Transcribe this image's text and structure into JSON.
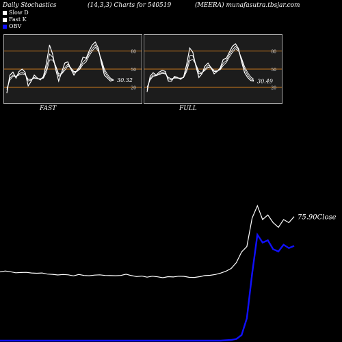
{
  "header": {
    "title": "Daily Stochastics",
    "params": "(14,3,3) Charts for 540519",
    "site": "(MEERA) munafasutra.tbsjar.com"
  },
  "legend": [
    {
      "label": "Slow  D",
      "color": "#ffffff"
    },
    {
      "label": "Fast K",
      "color": "#ffffff"
    },
    {
      "label": "OBV",
      "color": "#1010ff"
    }
  ],
  "colors": {
    "line": "#ffffff",
    "obv": "#1010ff",
    "band": "#c8781e",
    "panel_bg": "#1c1c1c"
  },
  "chart_data": [
    {
      "type": "line",
      "title": "FAST",
      "ylim": [
        0,
        100
      ],
      "levels": [
        20,
        50,
        80
      ],
      "value_label": "30.32",
      "series": [
        {
          "values": [
            10,
            40,
            45,
            35,
            46,
            50,
            45,
            22,
            30,
            40,
            35,
            32,
            38,
            60,
            90,
            75,
            50,
            30,
            45,
            60,
            62,
            50,
            40,
            48,
            55,
            70,
            68,
            80,
            90,
            95,
            85,
            60,
            40,
            35,
            30,
            32
          ]
        },
        {
          "values": [
            15,
            35,
            40,
            38,
            42,
            45,
            42,
            30,
            32,
            36,
            34,
            33,
            36,
            50,
            75,
            70,
            55,
            38,
            42,
            52,
            58,
            52,
            44,
            46,
            52,
            62,
            66,
            76,
            84,
            90,
            82,
            64,
            46,
            38,
            33,
            31
          ]
        },
        {
          "values": [
            18,
            32,
            38,
            38,
            40,
            42,
            41,
            33,
            33,
            35,
            34,
            34,
            35,
            45,
            65,
            65,
            56,
            42,
            42,
            48,
            55,
            52,
            46,
            46,
            50,
            58,
            62,
            72,
            80,
            86,
            80,
            66,
            50,
            41,
            35,
            32
          ]
        }
      ]
    },
    {
      "type": "line",
      "title": "FULL",
      "ylim": [
        0,
        100
      ],
      "levels": [
        20,
        50,
        80
      ],
      "value_label": "30.49",
      "series": [
        {
          "values": [
            12,
            38,
            44,
            40,
            45,
            48,
            46,
            30,
            30,
            38,
            36,
            33,
            37,
            58,
            85,
            78,
            55,
            36,
            42,
            55,
            60,
            52,
            42,
            46,
            52,
            66,
            68,
            78,
            88,
            92,
            84,
            62,
            44,
            36,
            31,
            30
          ]
        },
        {
          "values": [
            16,
            34,
            40,
            39,
            42,
            45,
            43,
            34,
            32,
            36,
            35,
            34,
            36,
            50,
            72,
            72,
            58,
            42,
            43,
            50,
            56,
            53,
            46,
            46,
            50,
            60,
            64,
            74,
            82,
            88,
            82,
            66,
            50,
            40,
            34,
            31
          ]
        },
        {
          "values": [
            20,
            32,
            38,
            39,
            41,
            43,
            42,
            36,
            34,
            35,
            35,
            35,
            36,
            46,
            64,
            66,
            58,
            46,
            44,
            48,
            53,
            52,
            48,
            47,
            49,
            56,
            61,
            70,
            78,
            84,
            80,
            68,
            54,
            44,
            37,
            33
          ]
        }
      ]
    },
    {
      "type": "line",
      "value_label": "75.90Close",
      "series": [
        {
          "name": "Close",
          "values": [
            40,
            40.6,
            40.1,
            39.4,
            39.6,
            39.7,
            39.3,
            39.1,
            39.3,
            38.6,
            38.4,
            38.0,
            38.3,
            38.1,
            37.4,
            38.3,
            37.7,
            37.5,
            37.9,
            38.1,
            37.7,
            37.6,
            37.5,
            37.7,
            38.5,
            37.6,
            37.0,
            37.3,
            36.6,
            37.2,
            36.8,
            36.2,
            36.9,
            36.7,
            37.2,
            37.1,
            36.5,
            36.4,
            36.9,
            37.6,
            37.8,
            38.3,
            39.2,
            40.4,
            42.2,
            46.0,
            53.0,
            56.5,
            75.0,
            83.0,
            74.0,
            77.0,
            72.0,
            69.0,
            74.0,
            72.0,
            75.9
          ]
        },
        {
          "name": "OBV",
          "values": [
            0,
            0,
            0,
            0,
            0,
            0,
            0,
            0,
            0,
            0,
            0,
            0,
            0,
            0,
            0,
            0,
            0,
            0,
            0,
            0,
            0,
            0,
            0,
            0,
            0,
            0,
            0,
            0,
            0,
            0,
            0,
            0,
            0,
            0,
            0,
            0,
            0,
            0,
            0,
            0,
            0,
            0,
            0,
            0.3,
            0.6,
            1.5,
            5,
            20,
            60,
            95,
            88,
            90,
            82,
            80,
            86,
            83,
            85
          ]
        }
      ]
    }
  ]
}
